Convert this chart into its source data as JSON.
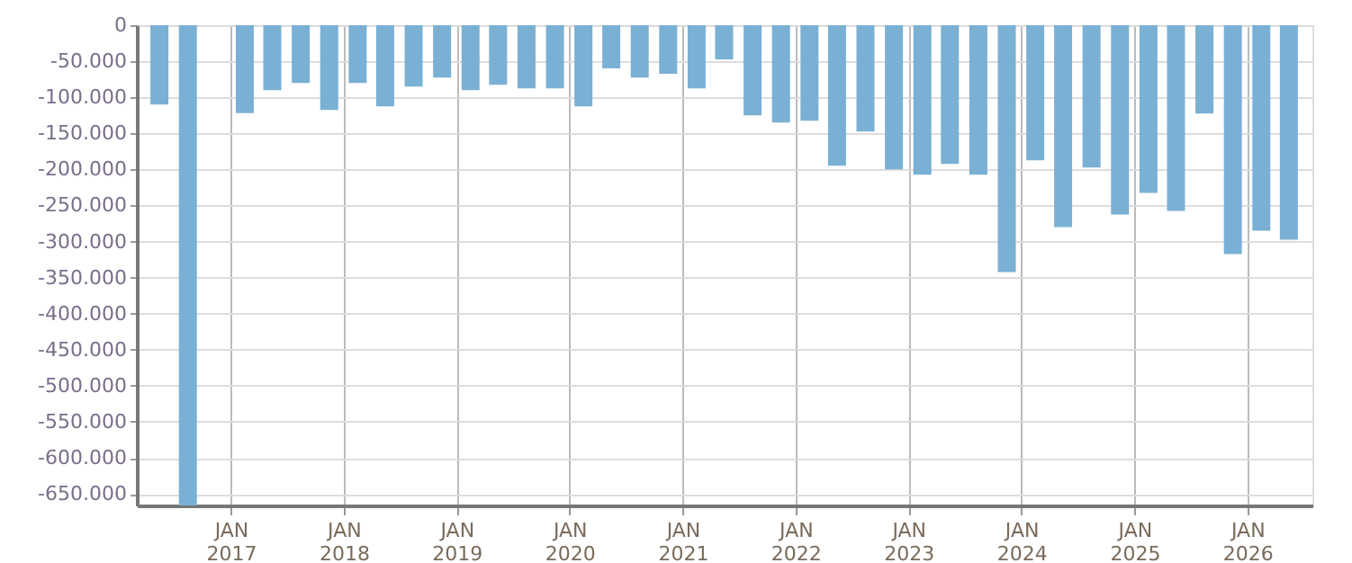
{
  "chart_data": {
    "type": "bar",
    "color": "#7ab0d4",
    "x": [
      "2016-05-15",
      "2016-08-15",
      "2017-02-15",
      "2017-05-15",
      "2017-08-15",
      "2017-11-15",
      "2018-02-15",
      "2018-05-15",
      "2018-08-15",
      "2018-11-15",
      "2019-02-15",
      "2019-05-15",
      "2019-08-15",
      "2019-11-15",
      "2020-02-15",
      "2020-05-15",
      "2020-08-15",
      "2020-11-15",
      "2021-02-15",
      "2021-05-15",
      "2021-08-15",
      "2021-11-15",
      "2022-02-15",
      "2022-05-15",
      "2022-08-15",
      "2022-11-15",
      "2023-02-15",
      "2023-05-15",
      "2023-08-15",
      "2023-11-15",
      "2024-02-15",
      "2024-05-15",
      "2024-08-15",
      "2024-11-15",
      "2025-02-15",
      "2025-05-15",
      "2025-08-15",
      "2025-11-15",
      "2026-02-15",
      "2026-05-15"
    ],
    "values": [
      -110000,
      -666000,
      -122000,
      -90000,
      -80000,
      -117500,
      -80000,
      -112500,
      -85000,
      -72500,
      -90000,
      -82500,
      -87500,
      -87500,
      -112500,
      -60000,
      -72500,
      -67500,
      -87500,
      -47500,
      -125000,
      -135000,
      -132500,
      -195000,
      -147500,
      -200000,
      -207500,
      -192500,
      -207500,
      -342500,
      -187500,
      -280000,
      -197500,
      -262500,
      -232500,
      -257500,
      -122500,
      -317500,
      -285000,
      -297500
    ],
    "ylim": [
      -666000,
      0
    ],
    "yticks": [
      {
        "value": 0,
        "label": "0"
      },
      {
        "value": -50000,
        "label": "-50.000"
      },
      {
        "value": -100000,
        "label": "-100.000"
      },
      {
        "value": -150000,
        "label": "-150.000"
      },
      {
        "value": -200000,
        "label": "-200.000"
      },
      {
        "value": -250000,
        "label": "-250.000"
      },
      {
        "value": -300000,
        "label": "-300.000"
      },
      {
        "value": -350000,
        "label": "-350.000"
      },
      {
        "value": -400000,
        "label": "-400.000"
      },
      {
        "value": -450000,
        "label": "-450.000"
      },
      {
        "value": -500000,
        "label": "-500.000"
      },
      {
        "value": -550000,
        "label": "-550.000"
      },
      {
        "value": -600000,
        "label": "-600.000"
      },
      {
        "value": -650000,
        "label": "-650.000"
      }
    ],
    "xlim": [
      "2016-04-01",
      "2026-07-01"
    ],
    "xticks": [
      {
        "value": "2017-01-01",
        "label": "JAN\n2017"
      },
      {
        "value": "2018-01-01",
        "label": "JAN\n2018"
      },
      {
        "value": "2019-01-01",
        "label": "JAN\n2019"
      },
      {
        "value": "2020-01-01",
        "label": "JAN\n2020"
      },
      {
        "value": "2021-01-01",
        "label": "JAN\n2021"
      },
      {
        "value": "2022-01-01",
        "label": "JAN\n2022"
      },
      {
        "value": "2023-01-01",
        "label": "JAN\n2023"
      },
      {
        "value": "2024-01-01",
        "label": "JAN\n2024"
      },
      {
        "value": "2025-01-01",
        "label": "JAN\n2025"
      },
      {
        "value": "2026-01-01",
        "label": "JAN\n2026"
      }
    ],
    "grid": true
  }
}
